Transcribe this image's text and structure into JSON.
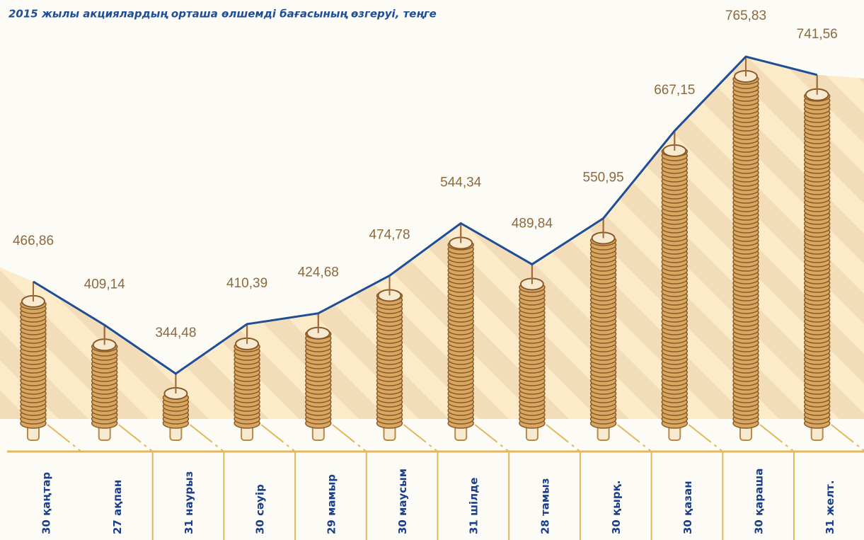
{
  "chart_data": {
    "type": "line",
    "title": "2015 жылы акциялардың орташа өлшемді бағасының өзгеруі, теңге",
    "categories": [
      "30 қаңтар",
      "27 ақпан",
      "31 наурыз",
      "30 сәуір",
      "29 мамыр",
      "30 маусым",
      "31 шілде",
      "28 тамыз",
      "30 қырқ.",
      "30 қазан",
      "30 қараша",
      "31 желт."
    ],
    "values": [
      466.86,
      409.14,
      344.48,
      410.39,
      424.68,
      474.78,
      544.34,
      489.84,
      550.95,
      667.15,
      765.83,
      741.56
    ],
    "value_labels": [
      "466,86",
      "409,14",
      "344,48",
      "410,39",
      "424,68",
      "474,78",
      "544,34",
      "489,84",
      "550,95",
      "667,15",
      "765,83",
      "741,56"
    ],
    "color": "#1f4e96"
  }
}
